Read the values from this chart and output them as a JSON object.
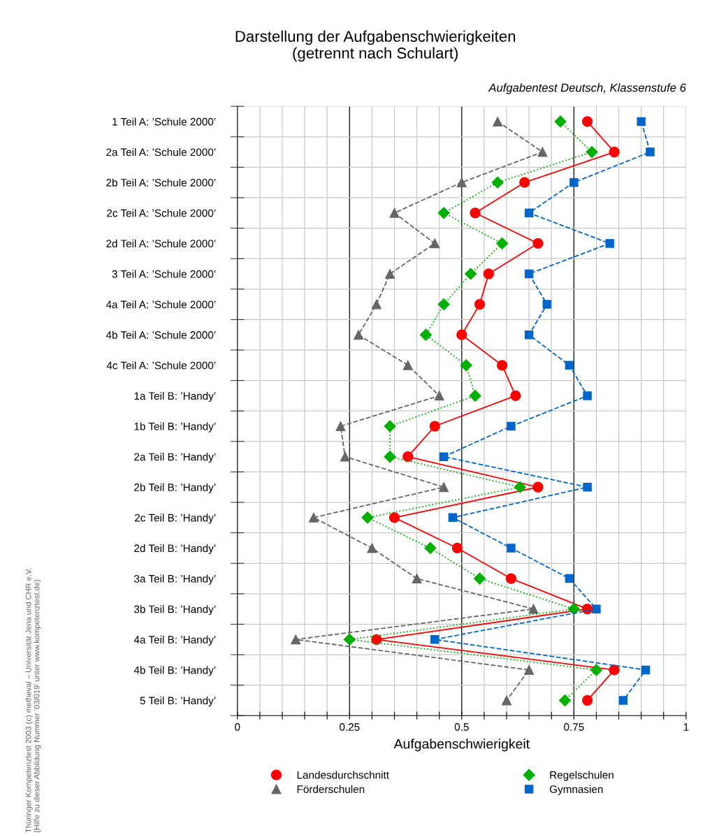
{
  "chart_data": {
    "type": "line",
    "orientation": "horizontal",
    "title": "Darstellung der Aufgabenschwierigkeiten\n(getrennt nach Schulart)",
    "subtitle": "Aufgabentest Deutsch, Klassenstufe 6",
    "xlabel": "Aufgabenschwierigkeit",
    "categories": [
      "1 Teil A: ’Schule 2000’",
      "2a Teil A: ’Schule 2000’",
      "2b Teil A: ’Schule 2000’",
      "2c Teil A: ’Schule 2000’",
      "2d Teil A: ’Schule 2000’",
      "3 Teil A: ’Schule 2000’",
      "4a Teil A: ’Schule 2000’",
      "4b Teil A: ’Schule 2000’",
      "4c Teil A: ’Schule 2000’",
      "1a Teil B: ’Handy’",
      "1b Teil B: ’Handy’",
      "2a Teil B: ’Handy’",
      "2b Teil B: ’Handy’",
      "2c Teil B: ’Handy’",
      "2d Teil B: ’Handy’",
      "3a Teil B: ’Handy’",
      "3b Teil B: ’Handy’",
      "4a Teil B: ’Handy’",
      "4b Teil B: ’Handy’",
      "5 Teil B: ’Handy’"
    ],
    "series": [
      {
        "name": "Landesdurchschnitt",
        "color": "#ff0000",
        "marker": "circle",
        "line_style": "solid",
        "values": [
          0.78,
          0.84,
          0.64,
          0.53,
          0.67,
          0.56,
          0.54,
          0.5,
          0.59,
          0.62,
          0.44,
          0.38,
          0.67,
          0.35,
          0.49,
          0.61,
          0.78,
          0.31,
          0.84,
          0.78
        ]
      },
      {
        "name": "Förderschulen",
        "color": "#666666",
        "marker": "triangle",
        "line_style": "dashed",
        "values": [
          0.58,
          0.68,
          0.5,
          0.35,
          0.44,
          0.34,
          0.31,
          0.27,
          0.38,
          0.45,
          0.23,
          0.24,
          0.46,
          0.17,
          0.3,
          0.4,
          0.66,
          0.13,
          0.65,
          0.6
        ]
      },
      {
        "name": "Regelschulen",
        "color": "#00b000",
        "marker": "diamond",
        "line_style": "dotted",
        "values": [
          0.72,
          0.79,
          0.58,
          0.46,
          0.59,
          0.52,
          0.46,
          0.42,
          0.51,
          0.53,
          0.34,
          0.34,
          0.63,
          0.29,
          0.43,
          0.54,
          0.75,
          0.25,
          0.8,
          0.73
        ]
      },
      {
        "name": "Gymnasien",
        "color": "#0066cc",
        "marker": "square",
        "line_style": "dashed",
        "values": [
          0.9,
          0.92,
          0.75,
          0.65,
          0.83,
          0.65,
          0.69,
          0.65,
          0.74,
          0.78,
          0.61,
          0.46,
          0.78,
          0.48,
          0.61,
          0.74,
          0.8,
          0.44,
          0.91,
          0.86
        ]
      }
    ],
    "xlim": [
      0,
      1
    ],
    "xticks": [
      0,
      {
        "value": 0.05,
        "label": null
      },
      {
        "value": 0.1,
        "label": null
      },
      {
        "value": 0.15,
        "label": null
      },
      {
        "value": 0.2,
        "label": null
      },
      0.25,
      {
        "value": 0.3,
        "label": null
      },
      {
        "value": 0.35,
        "label": null
      },
      {
        "value": 0.4,
        "label": null
      },
      {
        "value": 0.45,
        "label": null
      },
      0.5,
      {
        "value": 0.55,
        "label": null
      },
      {
        "value": 0.6,
        "label": null
      },
      {
        "value": 0.65,
        "label": null
      },
      {
        "value": 0.7,
        "label": null
      },
      0.75,
      {
        "value": 0.8,
        "label": null
      },
      {
        "value": 0.85,
        "label": null
      },
      {
        "value": 0.9,
        "label": null
      },
      {
        "value": 0.95,
        "label": null
      },
      1
    ],
    "grid": true,
    "legend": "bottom",
    "annotations": [
      "Thüringer Kompetenztest 2003 (c) metheval – Universität Jena und CHR e.V.\n(Hilfe zu dieser Abbildung Nummer ’03/019’ unter www.kompetenztest.de)"
    ]
  }
}
